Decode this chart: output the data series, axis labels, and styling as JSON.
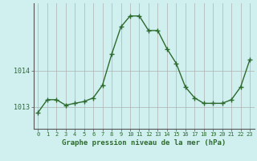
{
  "x": [
    0,
    1,
    2,
    3,
    4,
    5,
    6,
    7,
    8,
    9,
    10,
    11,
    12,
    13,
    14,
    15,
    16,
    17,
    18,
    19,
    20,
    21,
    22,
    23
  ],
  "y": [
    1012.85,
    1013.2,
    1013.2,
    1013.05,
    1013.1,
    1013.15,
    1013.25,
    1013.6,
    1014.45,
    1015.2,
    1015.5,
    1015.5,
    1015.1,
    1015.1,
    1014.6,
    1014.2,
    1013.55,
    1013.25,
    1013.1,
    1013.1,
    1013.1,
    1013.2,
    1013.55,
    1014.3
  ],
  "line_color": "#2d6a2d",
  "marker_color": "#2d6a2d",
  "bg_color": "#d0f0f0",
  "grid_color": "#b0b0b0",
  "ylabel_left": [
    "1014",
    "1013"
  ],
  "ylabel_values": [
    1014,
    1013
  ],
  "xlabel": "Graphe pression niveau de la mer (hPa)",
  "xticks": [
    0,
    1,
    2,
    3,
    4,
    5,
    6,
    7,
    8,
    9,
    10,
    11,
    12,
    13,
    14,
    15,
    16,
    17,
    18,
    19,
    20,
    21,
    22,
    23
  ],
  "ylim": [
    1012.4,
    1015.85
  ],
  "border_color": "#555555",
  "tick_color": "#2d6a2d",
  "label_color": "#2d6a2d"
}
